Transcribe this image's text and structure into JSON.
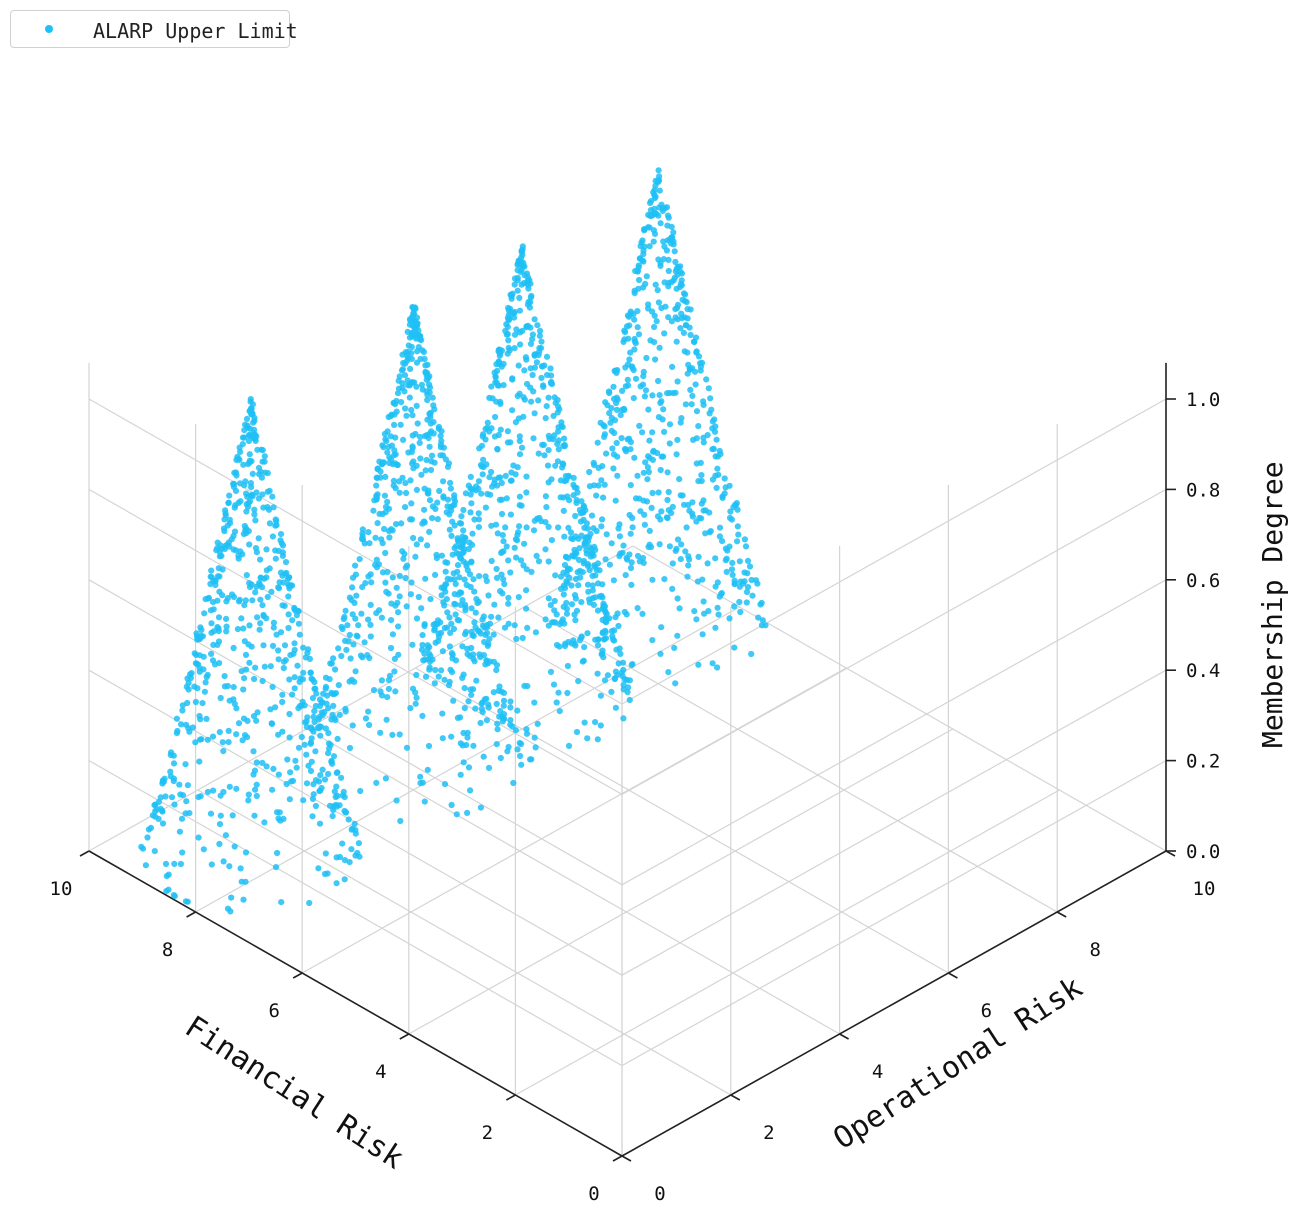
{
  "chart_data": {
    "type": "scatter",
    "title": "",
    "xlabel": "Financial Risk",
    "ylabel": "Operational Risk",
    "zlabel": "Membership Degree",
    "xlim": [
      0,
      10
    ],
    "ylim": [
      0,
      10
    ],
    "zlim": [
      0,
      1
    ],
    "xticks": [
      "0",
      "2",
      "4",
      "6",
      "8",
      "10"
    ],
    "yticks": [
      "0",
      "2",
      "4",
      "6",
      "8",
      "10"
    ],
    "zticks": [
      "0.0",
      "0.2",
      "0.4",
      "0.6",
      "0.8",
      "1.0"
    ],
    "grid": true,
    "legend_position": "top-left",
    "series": [
      {
        "name": "ALARP Upper Limit",
        "color": "#1ec0f5",
        "marker": "dot",
        "peaks": [
          {
            "x": 8.5,
            "y": 1.5,
            "z": 1.0
          },
          {
            "x": 8.5,
            "y": 4.5,
            "z": 1.0
          },
          {
            "x": 8.5,
            "y": 6.5,
            "z": 1.0
          },
          {
            "x": 8.5,
            "y": 9.0,
            "z": 1.0
          }
        ]
      }
    ]
  }
}
